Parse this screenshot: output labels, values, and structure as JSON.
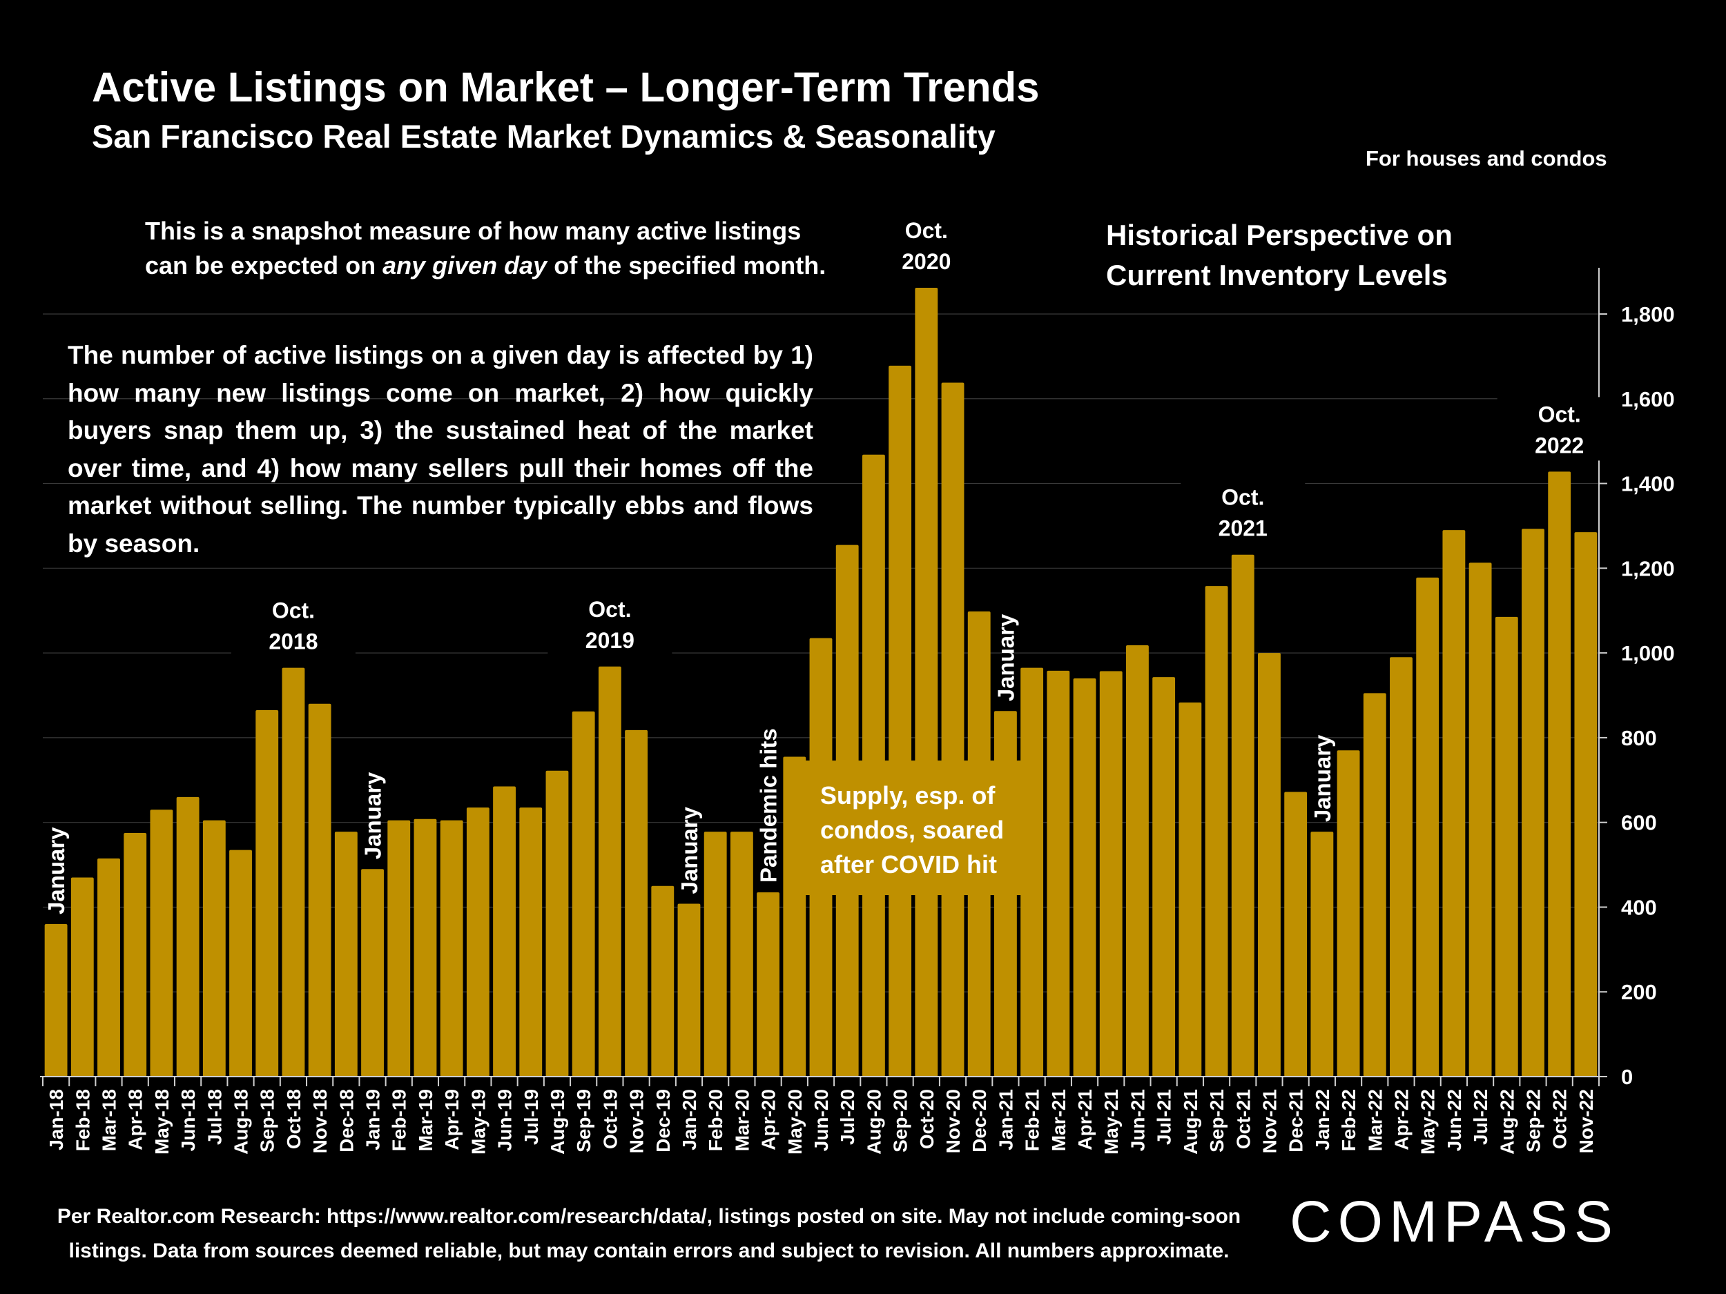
{
  "header": {
    "title": "Active Listings on Market – Longer-Term Trends",
    "subtitle": "San Francisco Real Estate Market Dynamics & Seasonality",
    "scope_note": "For houses and condos"
  },
  "notes": {
    "snapshot_line1": "This is a snapshot measure of how many active listings",
    "snapshot_line2_pre": "can be expected on ",
    "snapshot_line2_em": "any given day",
    "snapshot_line2_post": " of the specified month.",
    "hist_line1": "Historical Perspective on",
    "hist_line2": "Current Inventory Levels",
    "explain": "The number of active listings on a given day is affected by 1) how many new listings come on market, 2) how quickly buyers snap them up, 3) the sustained heat of the market over time, and 4) how many sellers pull their homes off the market without selling. The number typically ebbs and flows by season.",
    "callout_line1": "Supply, esp. of",
    "callout_line2": "condos, soared",
    "callout_line3": "after COVID hit"
  },
  "footer": {
    "line1": "Per Realtor.com Research:  https://www.realtor.com/research/data/, listings posted on site. May not include coming-soon",
    "line2": "listings. Data from sources deemed reliable, but may contain errors and subject to revision. All numbers approximate.",
    "logo": "COMPASS"
  },
  "colors": {
    "bar": "#bf9000",
    "background": "#000000",
    "text": "#ffffff"
  },
  "chart_data": {
    "type": "bar",
    "categories": [
      "Jan-18",
      "Feb-18",
      "Mar-18",
      "Apr-18",
      "May-18",
      "Jun-18",
      "Jul-18",
      "Aug-18",
      "Sep-18",
      "Oct-18",
      "Nov-18",
      "Dec-18",
      "Jan-19",
      "Feb-19",
      "Mar-19",
      "Apr-19",
      "May-19",
      "Jun-19",
      "Jul-19",
      "Aug-19",
      "Sep-19",
      "Oct-19",
      "Nov-19",
      "Dec-19",
      "Jan-20",
      "Feb-20",
      "Mar-20",
      "Apr-20",
      "May-20",
      "Jun-20",
      "Jul-20",
      "Aug-20",
      "Sep-20",
      "Oct-20",
      "Nov-20",
      "Dec-20",
      "Jan-21",
      "Feb-21",
      "Mar-21",
      "Apr-21",
      "May-21",
      "Jun-21",
      "Jul-21",
      "Aug-21",
      "Sep-21",
      "Oct-21",
      "Nov-21",
      "Dec-21",
      "Jan-22",
      "Feb-22",
      "Mar-22",
      "Apr-22",
      "May-22",
      "Jun-22",
      "Jul-22",
      "Aug-22",
      "Sep-22",
      "Oct-22",
      "Nov-22"
    ],
    "values": [
      360,
      470,
      515,
      575,
      630,
      660,
      605,
      535,
      865,
      965,
      880,
      578,
      490,
      605,
      608,
      605,
      635,
      685,
      635,
      722,
      862,
      968,
      818,
      450,
      408,
      578,
      578,
      435,
      755,
      1035,
      1255,
      1468,
      1678,
      1862,
      1638,
      1098,
      863,
      965,
      958,
      940,
      957,
      1018,
      943,
      883,
      1158,
      1232,
      1000,
      672,
      578,
      770,
      905,
      990,
      1178,
      1290,
      1213,
      1085,
      1293,
      1428,
      1285
    ],
    "ylim": [
      0,
      1900
    ],
    "yticks": [
      0,
      200,
      400,
      600,
      800,
      1000,
      1200,
      1400,
      1600,
      1800
    ],
    "ytick_labels": [
      "0",
      "200",
      "400",
      "600",
      "800",
      "1,000",
      "1,200",
      "1,400",
      "1,600",
      "1,800"
    ],
    "y_axis_side": "right",
    "grid": true,
    "annotations": [
      {
        "index": 0,
        "label": "January",
        "orientation": "vertical"
      },
      {
        "index": 9,
        "label": "Oct.\n2018",
        "orientation": "horizontal"
      },
      {
        "index": 12,
        "label": "January",
        "orientation": "vertical"
      },
      {
        "index": 21,
        "label": "Oct.\n2019",
        "orientation": "horizontal"
      },
      {
        "index": 24,
        "label": "January",
        "orientation": "vertical"
      },
      {
        "index": 27,
        "label": "Pandemic hits",
        "orientation": "vertical"
      },
      {
        "index": 33,
        "label": "Oct.\n2020",
        "orientation": "horizontal"
      },
      {
        "index": 36,
        "label": "January",
        "orientation": "vertical"
      },
      {
        "index": 45,
        "label": "Oct.\n2021",
        "orientation": "horizontal"
      },
      {
        "index": 48,
        "label": "January",
        "orientation": "vertical"
      },
      {
        "index": 57,
        "label": "Oct.\n2022",
        "orientation": "horizontal"
      }
    ]
  }
}
